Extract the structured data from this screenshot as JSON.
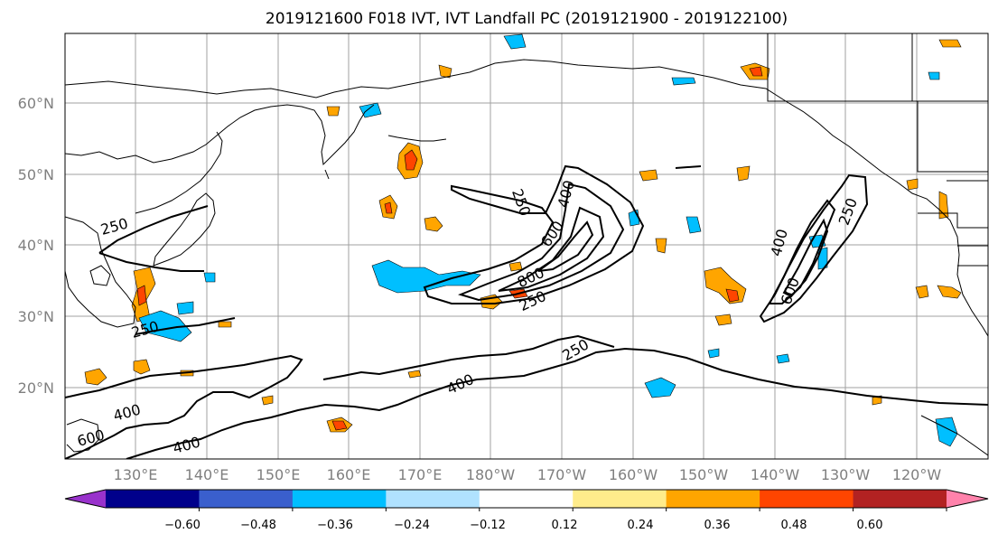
{
  "title": "2019121600 F018 IVT, IVT Landfall PC (2019121900 - 2019122100)",
  "map": {
    "lat_labels": [
      "60°N",
      "50°N",
      "40°N",
      "30°N",
      "20°N"
    ],
    "lon_labels": [
      "130°E",
      "140°E",
      "150°E",
      "160°E",
      "170°E",
      "180°W",
      "170°W",
      "160°W",
      "150°W",
      "140°W",
      "130°W",
      "120°W"
    ],
    "contour_labels": [
      "250",
      "250",
      "250",
      "250",
      "250",
      "400",
      "400",
      "400",
      "400",
      "600",
      "600",
      "600",
      "800"
    ]
  },
  "colorbar": {
    "colors": [
      "#9932cc",
      "#00008b",
      "#3a5fcd",
      "#00bfff",
      "#b0e2ff",
      "#ffffff",
      "#ffec8b",
      "#ffa500",
      "#ff4500",
      "#b22222",
      "#ff82ab"
    ],
    "tick_labels": [
      "−0.60",
      "−0.48",
      "−0.36",
      "−0.24",
      "−0.12",
      "0.12",
      "0.24",
      "0.36",
      "0.48",
      "0.60"
    ]
  }
}
